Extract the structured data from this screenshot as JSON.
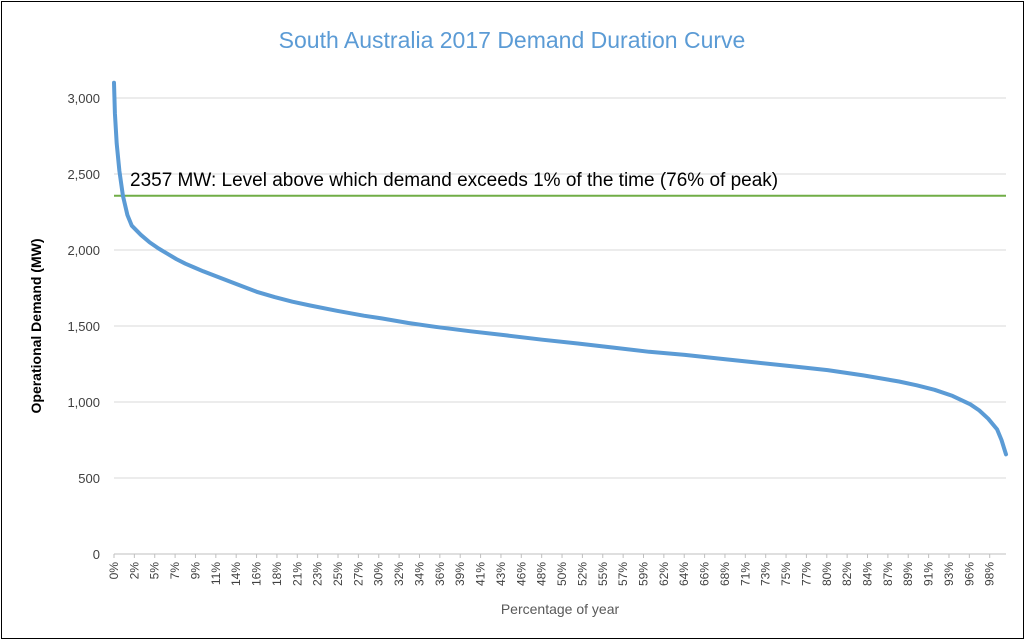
{
  "chart_data": {
    "type": "line",
    "title": "South Australia 2017 Demand Duration Curve",
    "xlabel": "Percentage of year",
    "ylabel": "Operational Demand (MW)",
    "xlim": [
      0,
      100
    ],
    "ylim": [
      0,
      3000
    ],
    "grid": "horizontal",
    "y_ticks": [
      {
        "value": 0,
        "label": "0"
      },
      {
        "value": 500,
        "label": "500"
      },
      {
        "value": 1000,
        "label": "1,000"
      },
      {
        "value": 1500,
        "label": "1,500"
      },
      {
        "value": 2000,
        "label": "2,000"
      },
      {
        "value": 2500,
        "label": "2,500"
      },
      {
        "value": 3000,
        "label": "3,000"
      }
    ],
    "x_tick_labels": [
      "0%",
      "2%",
      "5%",
      "7%",
      "9%",
      "11%",
      "14%",
      "16%",
      "18%",
      "21%",
      "23%",
      "25%",
      "27%",
      "30%",
      "32%",
      "34%",
      "36%",
      "39%",
      "41%",
      "43%",
      "46%",
      "48%",
      "50%",
      "52%",
      "55%",
      "57%",
      "59%",
      "62%",
      "64%",
      "66%",
      "68%",
      "71%",
      "73%",
      "75%",
      "77%",
      "80%",
      "82%",
      "84%",
      "87%",
      "89%",
      "91%",
      "93%",
      "96%",
      "98%"
    ],
    "series": [
      {
        "color": "#5b9bd5",
        "points": [
          [
            0,
            3100
          ],
          [
            0.1,
            2900
          ],
          [
            0.3,
            2700
          ],
          [
            0.6,
            2520
          ],
          [
            1,
            2357
          ],
          [
            1.5,
            2230
          ],
          [
            2,
            2160
          ],
          [
            3,
            2100
          ],
          [
            4,
            2050
          ],
          [
            5,
            2010
          ],
          [
            6,
            1975
          ],
          [
            7,
            1940
          ],
          [
            8,
            1910
          ],
          [
            9,
            1885
          ],
          [
            10,
            1860
          ],
          [
            12,
            1815
          ],
          [
            14,
            1770
          ],
          [
            16,
            1725
          ],
          [
            18,
            1690
          ],
          [
            20,
            1660
          ],
          [
            22,
            1635
          ],
          [
            25,
            1600
          ],
          [
            28,
            1568
          ],
          [
            30,
            1550
          ],
          [
            33,
            1520
          ],
          [
            36,
            1495
          ],
          [
            40,
            1465
          ],
          [
            44,
            1438
          ],
          [
            48,
            1410
          ],
          [
            52,
            1385
          ],
          [
            56,
            1358
          ],
          [
            60,
            1330
          ],
          [
            64,
            1310
          ],
          [
            68,
            1285
          ],
          [
            72,
            1260
          ],
          [
            76,
            1235
          ],
          [
            80,
            1210
          ],
          [
            84,
            1175
          ],
          [
            88,
            1135
          ],
          [
            90,
            1110
          ],
          [
            92,
            1080
          ],
          [
            94,
            1040
          ],
          [
            96,
            985
          ],
          [
            97,
            945
          ],
          [
            98,
            890
          ],
          [
            99,
            820
          ],
          [
            99.5,
            750
          ],
          [
            100,
            655
          ]
        ]
      }
    ],
    "reference_line": {
      "y": 2357,
      "color": "#70ad47",
      "label": "2357 MW: Level above which demand exceeds 1% of the time (76% of peak)"
    }
  }
}
